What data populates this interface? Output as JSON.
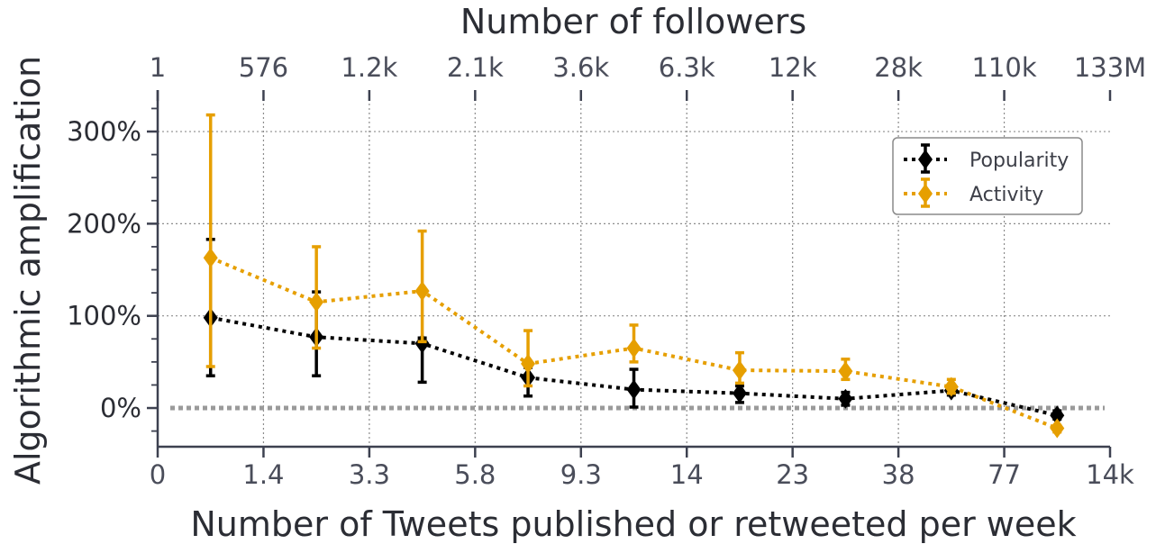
{
  "chart_data": {
    "type": "line",
    "title": "",
    "xlabel": "Number of Tweets published or retweeted per week",
    "ylabel": "Algorithmic amplification",
    "top_xlabel": "Number of followers",
    "x_tick_labels": [
      "0",
      "1.4",
      "3.3",
      "5.8",
      "9.3",
      "14",
      "23",
      "38",
      "77",
      "14k"
    ],
    "top_tick_labels": [
      "1",
      "576",
      "1.2k",
      "2.1k",
      "3.6k",
      "6.3k",
      "12k",
      "28k",
      "110k",
      "133M"
    ],
    "y_tick_labels": [
      "0%",
      "100%",
      "200%",
      "300%"
    ],
    "ylim": [
      -42,
      345
    ],
    "decile_bins": 9,
    "x": [
      0.5,
      1.5,
      2.5,
      3.5,
      4.5,
      5.5,
      6.5,
      7.5,
      8.5
    ],
    "grid": true,
    "zero_line": true,
    "legend_position": "top-right",
    "series": [
      {
        "name": "Popularity",
        "color": "#000000",
        "values": [
          98,
          77,
          70,
          33,
          20,
          16,
          10,
          19,
          -8
        ],
        "err_low": [
          35,
          35,
          28,
          13,
          1,
          6,
          3,
          14,
          -12
        ],
        "err_high": [
          183,
          126,
          76,
          44,
          42,
          24,
          17,
          25,
          -3
        ]
      },
      {
        "name": "Activity",
        "color": "#E69F00",
        "values": [
          163,
          115,
          127,
          48,
          65,
          41,
          40,
          23,
          -22
        ],
        "err_low": [
          45,
          65,
          72,
          24,
          50,
          27,
          31,
          16,
          -26
        ],
        "err_high": [
          318,
          175,
          192,
          84,
          90,
          60,
          53,
          31,
          -19
        ]
      }
    ]
  }
}
